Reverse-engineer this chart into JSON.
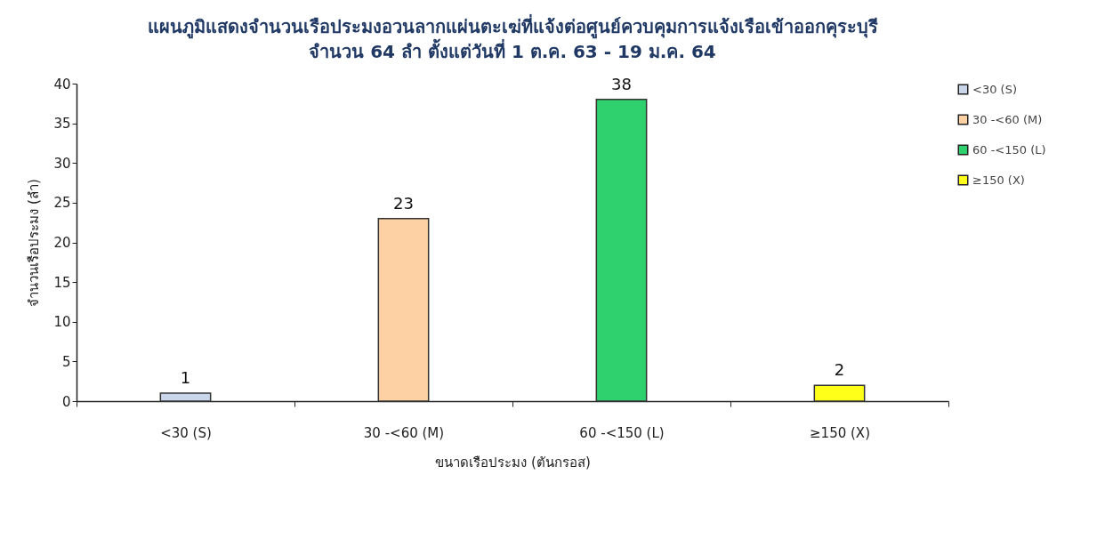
{
  "chart_data": {
    "type": "bar",
    "title": "แผนภูมิแสดงจำนวนเรือประมงอวนลากแผ่นตะเฆ่ที่แจ้งต่อศูนย์ควบคุมการแจ้งเรือเข้าออกคุระบุรี",
    "subtitle": "จำนวน 64 ลำ ตั้งแต่วันที่ 1 ต.ค. 63 - 19 ม.ค. 64",
    "xlabel": "ขนาดเรือประมง (ตันกรอส)",
    "ylabel": "จำนวนเรือประมง (ลำ)",
    "categories": [
      "<30 (S)",
      "30 -<60 (M)",
      "60 -<150 (L)",
      "≥150 (X)"
    ],
    "series": [
      {
        "name": "<30 (S)",
        "color": "#c9d6ea",
        "values": [
          1,
          null,
          null,
          null
        ]
      },
      {
        "name": "30 -<60 (M)",
        "color": "#fdd1a3",
        "values": [
          null,
          23,
          null,
          null
        ]
      },
      {
        "name": "60 -<150 (L)",
        "color": "#2fd06e",
        "values": [
          null,
          null,
          38,
          null
        ]
      },
      {
        "name": "≥150 (X)",
        "color": "#ffff1a",
        "values": [
          null,
          null,
          null,
          2
        ]
      }
    ],
    "ylim": [
      0,
      40
    ],
    "yticks": [
      0,
      5,
      10,
      15,
      20,
      25,
      30,
      35,
      40
    ],
    "grid": false,
    "legend": "right",
    "data_labels": true
  }
}
